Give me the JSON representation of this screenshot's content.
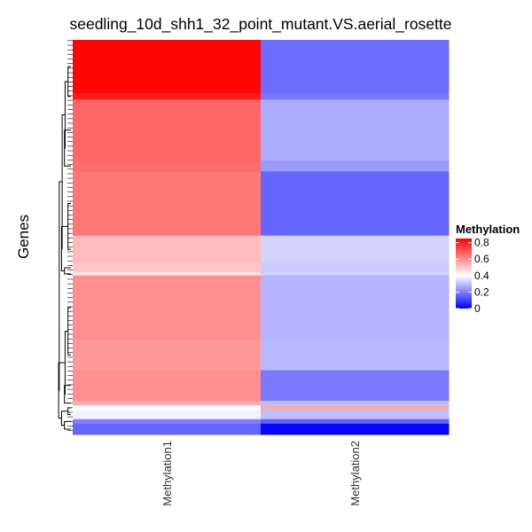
{
  "chart_data": {
    "type": "heatmap",
    "title": "seedling_10d_shh1_32_point_mutant.VS.aerial_rosette",
    "ylabel": "Genes",
    "columns": [
      "Methylation1",
      "Methylation2"
    ],
    "legend": {
      "title": "Methylation",
      "ticks": [
        0.8,
        0.6,
        0.4,
        0.2,
        0
      ],
      "range": [
        0,
        0.85
      ],
      "colors": {
        "low": "#0000ff",
        "mid": "#ffffff",
        "high": "#ff0000"
      },
      "midpoint": 0.4
    },
    "blocks": [
      {
        "rows": 35,
        "methylation1": 0.84,
        "methylation2": 0.17
      },
      {
        "rows": 4,
        "methylation1": 0.8,
        "methylation2": 0.19
      },
      {
        "rows": 40,
        "methylation1": 0.67,
        "methylation2": 0.27
      },
      {
        "rows": 7,
        "methylation1": 0.66,
        "methylation2": 0.24
      },
      {
        "rows": 42,
        "methylation1": 0.64,
        "methylation2": 0.16
      },
      {
        "rows": 18,
        "methylation1": 0.52,
        "methylation2": 0.33
      },
      {
        "rows": 6,
        "methylation1": 0.5,
        "methylation2": 0.32
      },
      {
        "rows": 2,
        "methylation1": 0.44,
        "methylation2": 0.33
      },
      {
        "rows": 42,
        "methylation1": 0.6,
        "methylation2": 0.28
      },
      {
        "rows": 20,
        "methylation1": 0.58,
        "methylation2": 0.29
      },
      {
        "rows": 20,
        "methylation1": 0.6,
        "methylation2": 0.19
      },
      {
        "rows": 3,
        "methylation1": 0.55,
        "methylation2": 0.3
      },
      {
        "rows": 3,
        "methylation1": 0.4,
        "methylation2": 0.55
      },
      {
        "rows": 6,
        "methylation1": 0.38,
        "methylation2": 0.3
      },
      {
        "rows": 3,
        "methylation1": 0.2,
        "methylation2": 0.15
      },
      {
        "rows": 7,
        "methylation1": 0.16,
        "methylation2": 0.01
      }
    ]
  }
}
